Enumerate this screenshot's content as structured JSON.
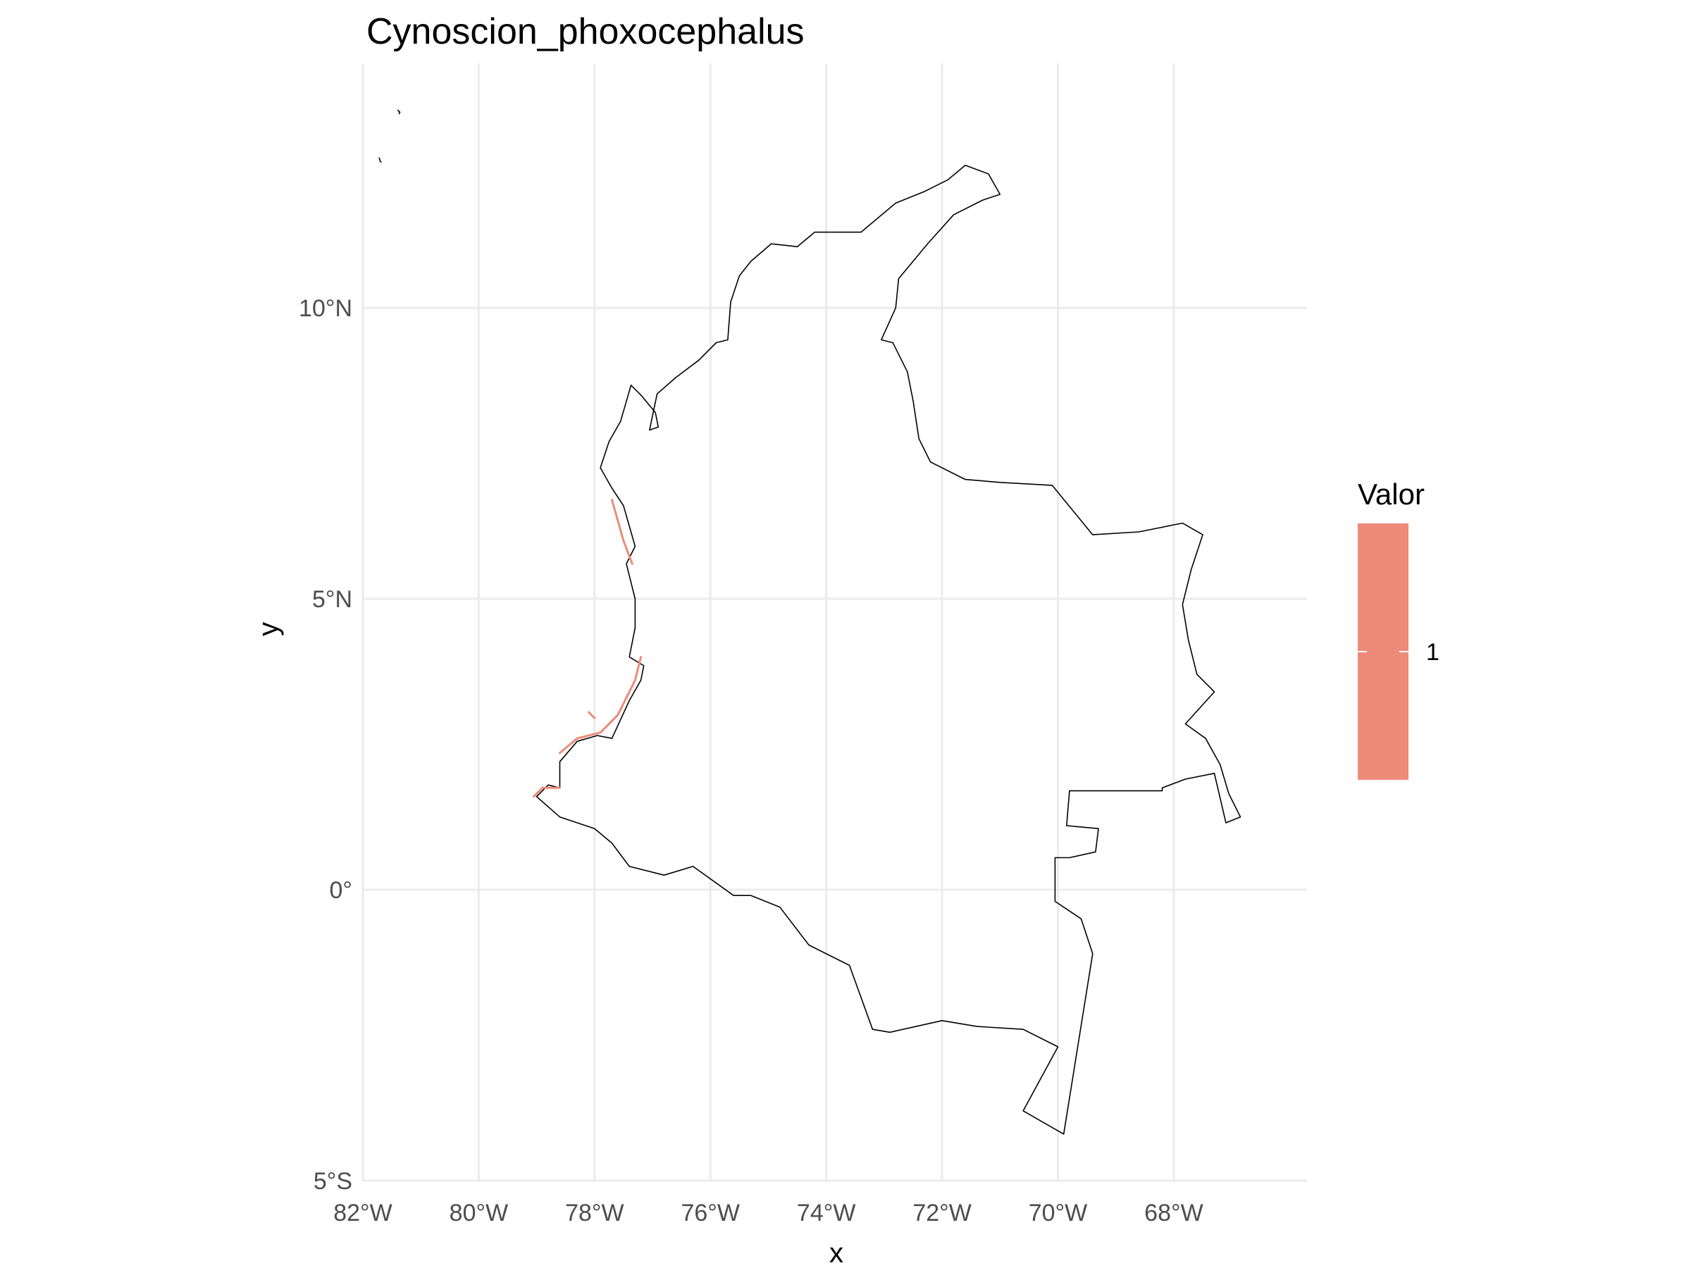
{
  "chart_data": {
    "type": "map",
    "title": "Cynoscion_phoxocephalus",
    "xlabel": "x",
    "ylabel": "y",
    "x_ticks": [
      {
        "value": -82,
        "label": "82°W"
      },
      {
        "value": -80,
        "label": "80°W"
      },
      {
        "value": -78,
        "label": "78°W"
      },
      {
        "value": -76,
        "label": "76°W"
      },
      {
        "value": -74,
        "label": "74°W"
      },
      {
        "value": -72,
        "label": "72°W"
      },
      {
        "value": -70,
        "label": "70°W"
      },
      {
        "value": -68,
        "label": "68°W"
      }
    ],
    "y_ticks": [
      {
        "value": 10,
        "label": "10°N"
      },
      {
        "value": 5,
        "label": "5°N"
      },
      {
        "value": 0,
        "label": "0°"
      },
      {
        "value": -5,
        "label": "5°S"
      }
    ],
    "xlim": [
      -82.0,
      -65.7
    ],
    "ylim": [
      -5.0,
      14.2
    ],
    "grid": true,
    "legend": {
      "title": "Valor",
      "position": "right",
      "entries": [
        {
          "value": 1,
          "label": "1",
          "color": "#ee8a78"
        }
      ]
    },
    "outline_color": "#000000",
    "presence_color": "#ee8a78",
    "country_outline": [
      [
        -77.37,
        8.67
      ],
      [
        -77.2,
        8.5
      ],
      [
        -76.95,
        8.2
      ],
      [
        -76.9,
        7.95
      ],
      [
        -77.05,
        7.9
      ],
      [
        -76.92,
        8.52
      ],
      [
        -76.6,
        8.8
      ],
      [
        -76.2,
        9.1
      ],
      [
        -75.9,
        9.4
      ],
      [
        -75.7,
        9.45
      ],
      [
        -75.65,
        10.1
      ],
      [
        -75.5,
        10.55
      ],
      [
        -75.3,
        10.8
      ],
      [
        -74.95,
        11.1
      ],
      [
        -74.5,
        11.05
      ],
      [
        -74.2,
        11.3
      ],
      [
        -73.4,
        11.3
      ],
      [
        -72.8,
        11.8
      ],
      [
        -72.3,
        12.0
      ],
      [
        -71.9,
        12.2
      ],
      [
        -71.6,
        12.45
      ],
      [
        -71.2,
        12.3
      ],
      [
        -71.0,
        11.95
      ],
      [
        -71.3,
        11.85
      ],
      [
        -71.8,
        11.6
      ],
      [
        -72.25,
        11.1
      ],
      [
        -72.75,
        10.5
      ],
      [
        -72.8,
        10.0
      ],
      [
        -73.05,
        9.45
      ],
      [
        -72.85,
        9.4
      ],
      [
        -72.6,
        8.9
      ],
      [
        -72.5,
        8.4
      ],
      [
        -72.4,
        7.75
      ],
      [
        -72.2,
        7.35
      ],
      [
        -71.6,
        7.05
      ],
      [
        -71.0,
        7.0
      ],
      [
        -70.1,
        6.95
      ],
      [
        -69.4,
        6.1
      ],
      [
        -68.6,
        6.15
      ],
      [
        -67.85,
        6.3
      ],
      [
        -67.5,
        6.1
      ],
      [
        -67.7,
        5.5
      ],
      [
        -67.85,
        4.9
      ],
      [
        -67.75,
        4.3
      ],
      [
        -67.6,
        3.7
      ],
      [
        -67.3,
        3.4
      ],
      [
        -67.8,
        2.85
      ],
      [
        -67.45,
        2.6
      ],
      [
        -67.2,
        2.15
      ],
      [
        -67.05,
        1.65
      ],
      [
        -66.85,
        1.25
      ],
      [
        -67.1,
        1.15
      ],
      [
        -67.3,
        2.0
      ],
      [
        -67.8,
        1.9
      ],
      [
        -68.2,
        1.75
      ],
      [
        -68.2,
        1.7
      ],
      [
        -69.4,
        1.7
      ],
      [
        -69.8,
        1.7
      ],
      [
        -69.85,
        1.1
      ],
      [
        -69.3,
        1.05
      ],
      [
        -69.35,
        0.65
      ],
      [
        -69.8,
        0.55
      ],
      [
        -70.05,
        0.55
      ],
      [
        -70.05,
        -0.2
      ],
      [
        -69.6,
        -0.5
      ],
      [
        -69.4,
        -1.1
      ],
      [
        -69.9,
        -4.2
      ],
      [
        -70.6,
        -3.8
      ],
      [
        -70.0,
        -2.7
      ],
      [
        -70.6,
        -2.4
      ],
      [
        -71.4,
        -2.35
      ],
      [
        -72.0,
        -2.25
      ],
      [
        -72.9,
        -2.45
      ],
      [
        -73.2,
        -2.4
      ],
      [
        -73.6,
        -1.3
      ],
      [
        -74.3,
        -0.95
      ],
      [
        -74.8,
        -0.3
      ],
      [
        -75.3,
        -0.1
      ],
      [
        -75.6,
        -0.1
      ],
      [
        -76.3,
        0.4
      ],
      [
        -76.8,
        0.25
      ],
      [
        -77.4,
        0.4
      ],
      [
        -77.7,
        0.8
      ],
      [
        -78.0,
        1.05
      ],
      [
        -78.6,
        1.25
      ],
      [
        -79.0,
        1.6
      ],
      [
        -78.8,
        1.8
      ],
      [
        -78.6,
        1.75
      ],
      [
        -78.6,
        2.2
      ],
      [
        -78.3,
        2.55
      ],
      [
        -77.95,
        2.65
      ],
      [
        -77.7,
        2.6
      ],
      [
        -77.4,
        3.25
      ],
      [
        -77.2,
        3.6
      ],
      [
        -77.15,
        3.85
      ],
      [
        -77.4,
        4.0
      ],
      [
        -77.3,
        4.5
      ],
      [
        -77.3,
        5.0
      ],
      [
        -77.45,
        5.6
      ],
      [
        -77.3,
        5.9
      ],
      [
        -77.5,
        6.6
      ],
      [
        -77.7,
        6.9
      ],
      [
        -77.9,
        7.25
      ],
      [
        -77.75,
        7.7
      ],
      [
        -77.55,
        8.05
      ],
      [
        -77.37,
        8.67
      ]
    ],
    "islands": [
      [
        [
          -81.72,
          12.58
        ],
        [
          -81.7,
          12.52
        ],
        [
          -81.68,
          12.5
        ]
      ],
      [
        [
          -81.4,
          13.4
        ],
        [
          -81.36,
          13.36
        ],
        [
          -81.38,
          13.33
        ]
      ]
    ],
    "presence_segments": [
      [
        [
          -77.7,
          6.7
        ],
        [
          -77.5,
          6.0
        ],
        [
          -77.35,
          5.6
        ]
      ],
      [
        [
          -77.2,
          4.0
        ],
        [
          -77.3,
          3.6
        ],
        [
          -77.6,
          3.0
        ],
        [
          -77.9,
          2.7
        ],
        [
          -78.3,
          2.6
        ],
        [
          -78.6,
          2.35
        ]
      ],
      [
        [
          -78.1,
          3.05
        ],
        [
          -78.0,
          2.95
        ]
      ],
      [
        [
          -78.6,
          1.75
        ],
        [
          -78.9,
          1.75
        ],
        [
          -79.05,
          1.6
        ]
      ]
    ]
  }
}
